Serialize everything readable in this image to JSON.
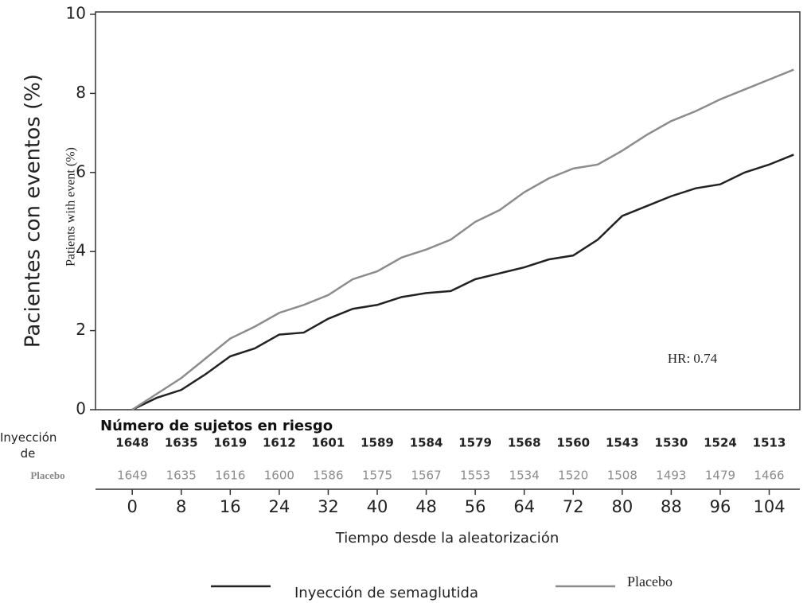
{
  "chart_data": {
    "type": "line",
    "y_label": "Pacientes con eventos (%)",
    "y_label_overlay": "Patients with event (%)",
    "x_label": "Tiempo desde la aleatorización",
    "annotation": "HR: 0.74",
    "x": [
      0,
      4,
      8,
      12,
      16,
      20,
      24,
      28,
      32,
      36,
      40,
      44,
      48,
      52,
      56,
      60,
      64,
      68,
      72,
      76,
      80,
      84,
      88,
      92,
      96,
      100,
      104,
      108
    ],
    "series": [
      {
        "name": "Inyección de semaglutida",
        "color": "#222222",
        "values": [
          0,
          0.3,
          0.5,
          0.9,
          1.35,
          1.55,
          1.9,
          1.95,
          2.3,
          2.55,
          2.65,
          2.85,
          2.95,
          3.0,
          3.3,
          3.45,
          3.6,
          3.8,
          3.9,
          4.3,
          4.9,
          5.15,
          5.4,
          5.6,
          5.7,
          6.0,
          6.2,
          6.45
        ]
      },
      {
        "name": "Placebo",
        "color": "#8c8c8c",
        "values": [
          0,
          0.4,
          0.8,
          1.3,
          1.8,
          2.1,
          2.45,
          2.65,
          2.9,
          3.3,
          3.5,
          3.85,
          4.05,
          4.3,
          4.75,
          5.05,
          5.5,
          5.85,
          6.1,
          6.2,
          6.55,
          6.95,
          7.3,
          7.55,
          7.85,
          8.1,
          8.35,
          8.6
        ]
      }
    ],
    "xlim": [
      -6,
      109
    ],
    "ylim": [
      0,
      10
    ],
    "xticks": [
      0,
      8,
      16,
      24,
      32,
      40,
      48,
      56,
      64,
      72,
      80,
      88,
      96,
      104
    ],
    "yticks": [
      0,
      2,
      4,
      6,
      8,
      10
    ],
    "risk_table": {
      "title": "Número de sujetos en riesgo",
      "rows": [
        {
          "label": "Inyección de",
          "color": "#222222",
          "values": [
            1648,
            1635,
            1619,
            1612,
            1601,
            1589,
            1584,
            1579,
            1568,
            1560,
            1543,
            1530,
            1524,
            1513
          ]
        },
        {
          "label": "Placebo",
          "color": "#8c8c8c",
          "values": [
            1649,
            1635,
            1616,
            1600,
            1586,
            1575,
            1567,
            1553,
            1534,
            1520,
            1508,
            1493,
            1479,
            1466
          ]
        }
      ]
    }
  }
}
